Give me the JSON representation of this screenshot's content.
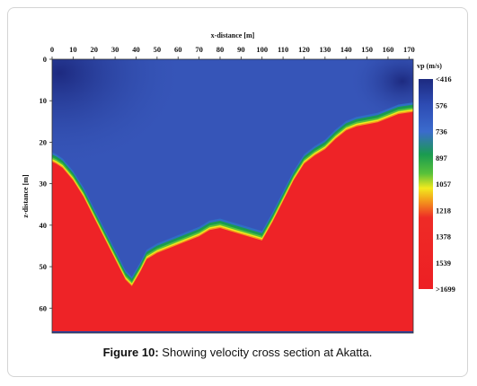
{
  "chart_data": {
    "type": "heatmap",
    "title": "",
    "xlabel": "x-distance [m]",
    "ylabel": "z-distance [m]",
    "xlim": [
      0,
      172
    ],
    "ylim": [
      0,
      66
    ],
    "x_ticks": [
      "0",
      "10",
      "20",
      "30",
      "40",
      "50",
      "60",
      "70",
      "80",
      "90",
      "100",
      "110",
      "120",
      "130",
      "140",
      "150",
      "160",
      "170"
    ],
    "y_ticks": [
      "0",
      "10",
      "20",
      "30",
      "40",
      "50",
      "60"
    ],
    "colorbar": {
      "title": "vp (m/s)",
      "labels": [
        "<416",
        "576",
        "736",
        "897",
        "1057",
        "1218",
        "1378",
        "1539",
        ">1699"
      ],
      "colors": [
        "#1e2f86",
        "#2d4bb3",
        "#3b6bcd",
        "#1a9b4f",
        "#58c13a",
        "#f2ea1e",
        "#f39a1c",
        "#ee2b26",
        "#ed1f24"
      ]
    },
    "interface_depth": {
      "x": [
        0,
        2,
        5,
        10,
        15,
        20,
        25,
        30,
        35,
        38,
        42,
        45,
        50,
        60,
        70,
        75,
        80,
        90,
        100,
        105,
        110,
        115,
        120,
        125,
        130,
        135,
        140,
        145,
        150,
        155,
        160,
        165,
        172
      ],
      "z": [
        23.5,
        24,
        25,
        28,
        32,
        37,
        42,
        47,
        52,
        53.5,
        50,
        47,
        45.5,
        43.5,
        41.5,
        40,
        39.5,
        41,
        42.5,
        38,
        33,
        28,
        24,
        22,
        20.5,
        18,
        16,
        15,
        14.5,
        14,
        13,
        12,
        11.5
      ]
    },
    "colors": {
      "shallow": "#24358f",
      "upper": "#3655b8",
      "lower": "#ee2327",
      "bottom_line": "#2b3f9a"
    }
  },
  "caption": {
    "label": "Figure 10:",
    "text": " Showing velocity cross section at Akatta."
  }
}
